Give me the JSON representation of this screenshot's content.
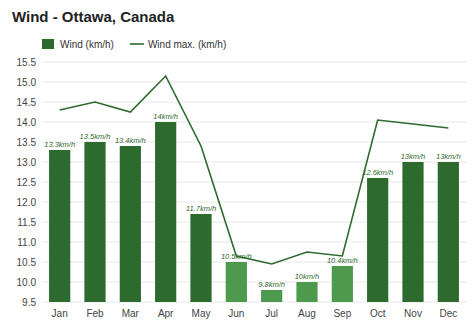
{
  "chart_data": {
    "type": "bar",
    "title": "Wind - Ottawa, Canada",
    "categories": [
      "Jan",
      "Feb",
      "Mar",
      "Apr",
      "May",
      "Jun",
      "Jul",
      "Aug",
      "Sep",
      "Oct",
      "Nov",
      "Dec"
    ],
    "series": [
      {
        "name": "Wind (km/h)",
        "type": "bar",
        "color": "#2d6a2d",
        "colors": [
          "#2d6a2d",
          "#2d6a2d",
          "#2d6a2d",
          "#2d6a2d",
          "#2d6a2d",
          "#4d9a4d",
          "#4d9a4d",
          "#4d9a4d",
          "#4d9a4d",
          "#2d6a2d",
          "#2d6a2d",
          "#2d6a2d"
        ],
        "values": [
          13.3,
          13.5,
          13.4,
          14.0,
          11.7,
          10.5,
          9.8,
          10.0,
          10.4,
          12.6,
          13.0,
          13.0
        ],
        "value_labels": [
          "13.3km/h",
          "13.5km/h",
          "13.4km/h",
          "14km/h",
          "11.7km/h",
          "10.5km/h",
          "9.8km/h",
          "10km/h",
          "10.4km/h",
          "12.6km/h",
          "13km/h",
          "13km/h"
        ]
      },
      {
        "name": "Wind max. (km/h)",
        "type": "line",
        "color": "#2d6a2d",
        "values": [
          14.3,
          14.5,
          14.25,
          15.15,
          13.4,
          10.65,
          10.45,
          10.75,
          10.65,
          14.05,
          13.95,
          13.85
        ]
      }
    ],
    "ylim": [
      9.5,
      15.5
    ],
    "yticks": [
      9.5,
      {
        "value": 10.0,
        "label": "10.0"
      },
      10.5,
      {
        "value": 11.0,
        "label": "11.0"
      },
      11.5,
      {
        "value": 12.0,
        "label": "12.0"
      },
      12.5,
      {
        "value": 13.0,
        "label": "13.0"
      },
      13.5,
      {
        "value": 14.0,
        "label": "14.0"
      },
      14.5,
      {
        "value": 15.0,
        "label": "15.0"
      },
      15.5
    ],
    "grid": true,
    "legend": "upper left",
    "data_labels": true
  }
}
